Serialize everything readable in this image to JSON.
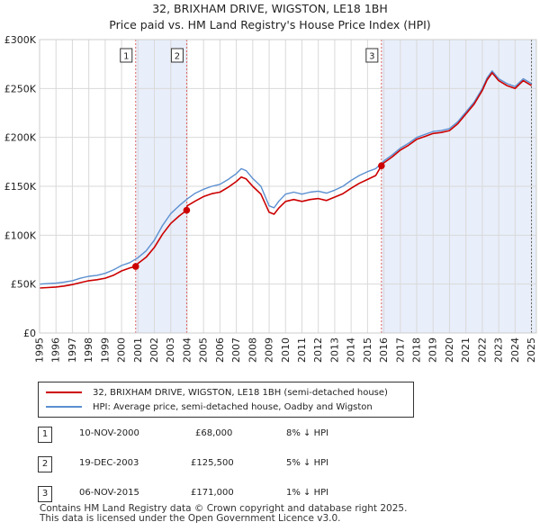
{
  "title": "32, BRIXHAM DRIVE, WIGSTON, LE18 1BH",
  "subtitle": "Price paid vs. HM Land Registry's House Price Index (HPI)",
  "colors": {
    "price_line": "#cc0000",
    "hpi_line": "#5b8fd0",
    "shade": "#e8eefa",
    "vline": "#e06060",
    "grid": "#d9d9d9"
  },
  "legend": {
    "price_label": "32, BRIXHAM DRIVE, WIGSTON, LE18 1BH (semi-detached house)",
    "hpi_label": "HPI: Average price, semi-detached house, Oadby and Wigston"
  },
  "sales": [
    {
      "num": "1",
      "date": "10-NOV-2000",
      "price": "£68,000",
      "hpi": "8% ↓ HPI"
    },
    {
      "num": "2",
      "date": "19-DEC-2003",
      "price": "£125,500",
      "hpi": "5% ↓ HPI"
    },
    {
      "num": "3",
      "date": "06-NOV-2015",
      "price": "£171,000",
      "hpi": "1% ↓ HPI"
    }
  ],
  "footer": {
    "line1": "Contains HM Land Registry data © Crown copyright and database right 2025.",
    "line2": "This data is licensed under the Open Government Licence v3.0."
  },
  "chart_data": {
    "type": "line",
    "title": "32, BRIXHAM DRIVE, WIGSTON, LE18 1BH",
    "subtitle": "Price paid vs. HM Land Registry's House Price Index (HPI)",
    "xlim": [
      1995,
      2025.3
    ],
    "ylim": [
      0,
      300000
    ],
    "x_ticks": [
      1995,
      1996,
      1997,
      1998,
      1999,
      2000,
      2001,
      2002,
      2003,
      2004,
      2005,
      2006,
      2007,
      2008,
      2009,
      2010,
      2011,
      2012,
      2013,
      2014,
      2015,
      2016,
      2017,
      2018,
      2019,
      2020,
      2021,
      2022,
      2023,
      2024,
      2025
    ],
    "y_ticks": [
      {
        "value": 0,
        "label": "£0"
      },
      {
        "value": 50000,
        "label": "£50K"
      },
      {
        "value": 100000,
        "label": "£100K"
      },
      {
        "value": 150000,
        "label": "£150K"
      },
      {
        "value": 200000,
        "label": "£200K"
      },
      {
        "value": 250000,
        "label": "£250K"
      },
      {
        "value": 300000,
        "label": "£300K"
      }
    ],
    "sale_markers": [
      {
        "label": "1",
        "x": 2000.86,
        "y": 68000
      },
      {
        "label": "2",
        "x": 2003.97,
        "y": 125500
      },
      {
        "label": "3",
        "x": 2015.85,
        "y": 171000
      }
    ],
    "shaded_ranges": [
      [
        2000.86,
        2003.97
      ],
      [
        2015.85,
        2025.3
      ]
    ],
    "series": [
      {
        "name": "HPI: Average price, semi-detached house, Oadby and Wigston",
        "color": "#5b8fd0",
        "x": [
          1995,
          1995.5,
          1996,
          1996.5,
          1997,
          1997.5,
          1998,
          1998.5,
          1999,
          1999.5,
          2000,
          2000.5,
          2001,
          2001.5,
          2002,
          2002.5,
          2003,
          2003.5,
          2004,
          2004.5,
          2005,
          2005.5,
          2006,
          2006.5,
          2007,
          2007.3,
          2007.6,
          2008,
          2008.5,
          2009,
          2009.3,
          2009.6,
          2010,
          2010.5,
          2011,
          2011.5,
          2012,
          2012.5,
          2013,
          2013.5,
          2014,
          2014.5,
          2015,
          2015.5,
          2016,
          2016.5,
          2017,
          2017.5,
          2018,
          2018.5,
          2019,
          2019.5,
          2020,
          2020.5,
          2021,
          2021.5,
          2022,
          2022.3,
          2022.6,
          2023,
          2023.5,
          2024,
          2024.5,
          2025
        ],
        "y": [
          50000,
          50500,
          51000,
          52000,
          53500,
          56000,
          58000,
          59000,
          61000,
          64500,
          69000,
          72000,
          77000,
          84000,
          95000,
          110000,
          122000,
          130000,
          137000,
          143000,
          147000,
          150000,
          152000,
          157000,
          163000,
          168000,
          166000,
          158000,
          150000,
          130000,
          128000,
          135000,
          142000,
          144000,
          142000,
          144000,
          145000,
          143000,
          146000,
          150000,
          156000,
          161000,
          165000,
          168000,
          176000,
          182000,
          189000,
          194000,
          200000,
          203000,
          206000,
          207000,
          209000,
          216000,
          226000,
          236000,
          250000,
          261000,
          268000,
          260000,
          255000,
          252000,
          260000,
          255000
        ]
      },
      {
        "name": "32, BRIXHAM DRIVE, WIGSTON, LE18 1BH (semi-detached house)",
        "color": "#cc0000",
        "x": [
          1995,
          1995.5,
          1996,
          1996.5,
          1997,
          1997.5,
          1998,
          1998.5,
          1999,
          1999.5,
          2000,
          2000.5,
          2000.86,
          2001,
          2001.5,
          2002,
          2002.5,
          2003,
          2003.5,
          2003.97,
          2004,
          2004.5,
          2005,
          2005.5,
          2006,
          2006.5,
          2007,
          2007.3,
          2007.6,
          2008,
          2008.5,
          2009,
          2009.3,
          2009.6,
          2010,
          2010.5,
          2011,
          2011.5,
          2012,
          2012.5,
          2013,
          2013.5,
          2014,
          2014.5,
          2015,
          2015.5,
          2015.85,
          2016,
          2016.5,
          2017,
          2017.5,
          2018,
          2018.5,
          2019,
          2019.5,
          2020,
          2020.5,
          2021,
          2021.5,
          2022,
          2022.3,
          2022.6,
          2023,
          2023.5,
          2024,
          2024.5,
          2025
        ],
        "y": [
          46000,
          46500,
          47000,
          48000,
          49500,
          51500,
          53500,
          54500,
          56000,
          59000,
          63500,
          66500,
          68000,
          71000,
          77500,
          87500,
          101000,
          112000,
          119500,
          125500,
          130000,
          135000,
          139500,
          142500,
          144000,
          149000,
          155000,
          159500,
          157500,
          150000,
          142000,
          123500,
          121500,
          128000,
          134500,
          136500,
          134500,
          136500,
          137500,
          135500,
          139000,
          142500,
          148000,
          153000,
          157000,
          161000,
          171000,
          174000,
          180000,
          187000,
          192000,
          198000,
          201000,
          204000,
          205000,
          207000,
          214000,
          224000,
          234000,
          248000,
          259000,
          266000,
          258000,
          253000,
          250000,
          258000,
          253000
        ]
      }
    ]
  }
}
